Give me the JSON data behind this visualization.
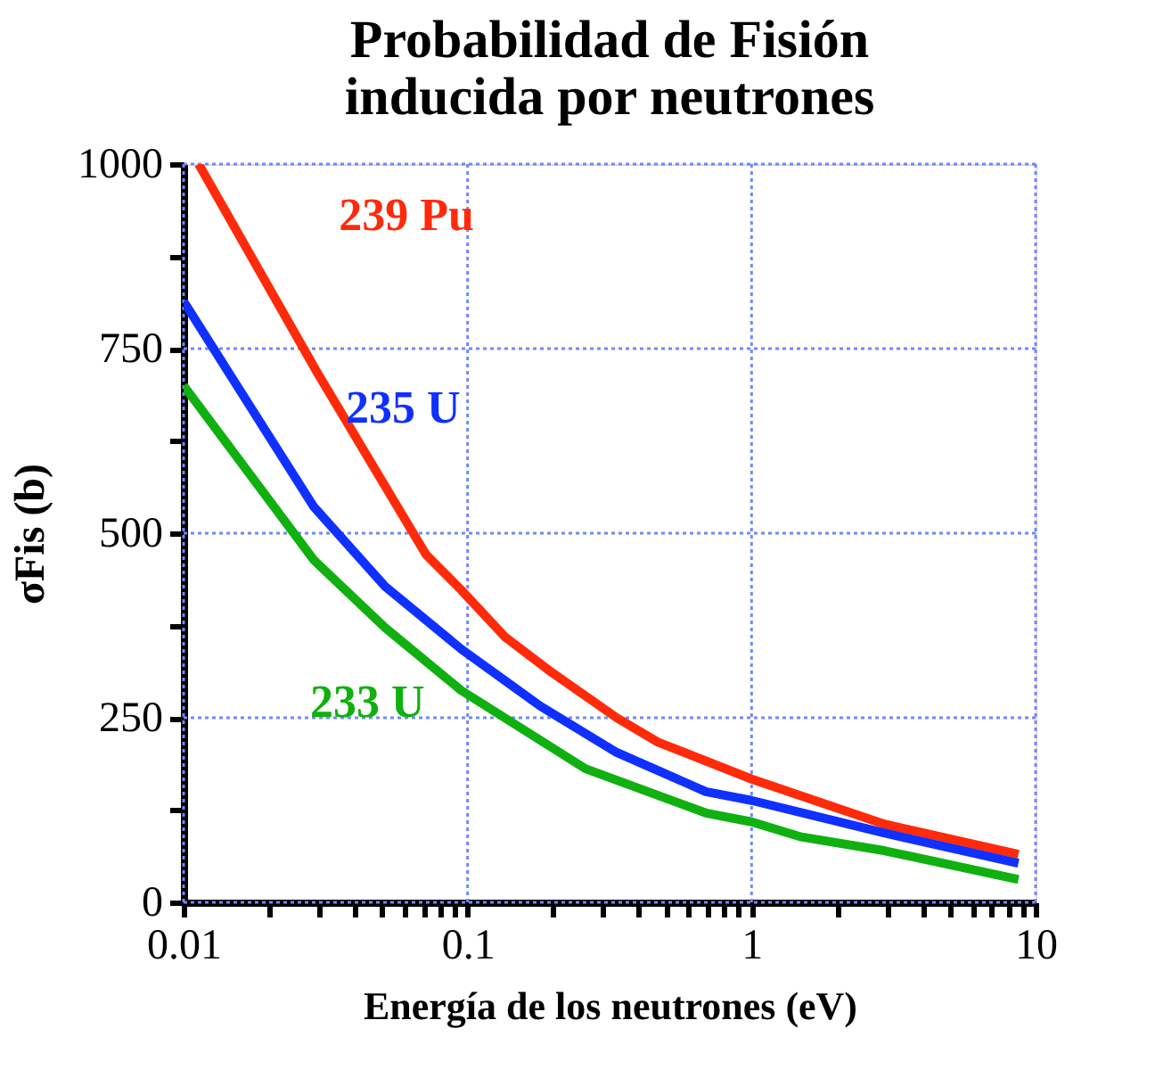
{
  "chart_data": {
    "type": "line",
    "title": "Probabilidad de Fisión\ninducida por neutrones",
    "xlabel": "Energía de los neutrones (eV)",
    "ylabel": "σFis (b)",
    "log": "x",
    "grid": true,
    "marker": "none",
    "line_style": "solid",
    "xlim": [
      0.01,
      10
    ],
    "ylim": [
      0,
      1000
    ],
    "xticks": [
      0.01,
      {
        "value": 0.02,
        "label": null
      },
      {
        "value": 0.03,
        "label": null
      },
      {
        "value": 0.04,
        "label": null
      },
      {
        "value": 0.05,
        "label": null
      },
      {
        "value": 0.06,
        "label": null
      },
      {
        "value": 0.07,
        "label": null
      },
      {
        "value": 0.08,
        "label": null
      },
      {
        "value": 0.09,
        "label": null
      },
      0.1,
      {
        "value": 0.2,
        "label": null
      },
      {
        "value": 0.3,
        "label": null
      },
      {
        "value": 0.4,
        "label": null
      },
      {
        "value": 0.5,
        "label": null
      },
      {
        "value": 0.6,
        "label": null
      },
      {
        "value": 0.7,
        "label": null
      },
      {
        "value": 0.8,
        "label": null
      },
      {
        "value": 0.9,
        "label": null
      },
      1,
      {
        "value": 2,
        "label": null
      },
      {
        "value": 3,
        "label": null
      },
      {
        "value": 4,
        "label": null
      },
      {
        "value": 5,
        "label": null
      },
      {
        "value": 6,
        "label": null
      },
      {
        "value": 7,
        "label": null
      },
      {
        "value": 8,
        "label": null
      },
      {
        "value": 9,
        "label": null
      },
      10
    ],
    "yticks": [
      0,
      {
        "value": 125,
        "label": null
      },
      250,
      {
        "value": 375,
        "label": null
      },
      500,
      {
        "value": 625,
        "label": null
      },
      750,
      {
        "value": 875,
        "label": null
      },
      1000
    ],
    "series": [
      {
        "name": "239 Pu",
        "color": "#ff2a0a",
        "x": [
          0.0113,
          0.0296,
          0.0714,
          0.095,
          0.135,
          0.197,
          0.335,
          0.468,
          1,
          2.93,
          8.7
        ],
        "values": [
          1000,
          717,
          471,
          423,
          360,
          312,
          250,
          217,
          167,
          106,
          65
        ]
      },
      {
        "name": "235 U",
        "color": "#1030ff",
        "x": [
          0.01,
          0.0287,
          0.0512,
          0.095,
          0.18,
          0.335,
          0.69,
          1,
          2.93,
          8.7
        ],
        "values": [
          814,
          536,
          428,
          343,
          266,
          203,
          150,
          138,
          94,
          53
        ]
      },
      {
        "name": "233 U",
        "color": "#10b010",
        "x": [
          0.01,
          0.0287,
          0.0512,
          0.095,
          0.26,
          0.69,
          1,
          1.48,
          2.93,
          8.7
        ],
        "values": [
          700,
          464,
          372,
          287,
          181,
          121,
          109,
          89,
          70,
          31
        ]
      }
    ]
  }
}
